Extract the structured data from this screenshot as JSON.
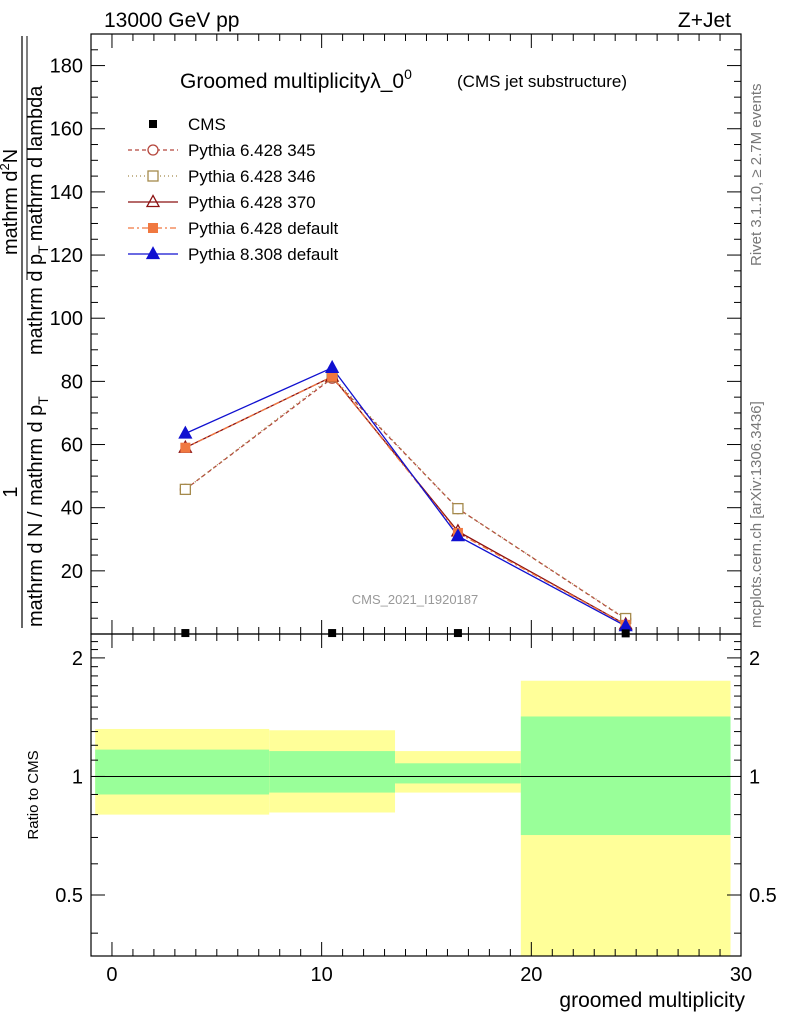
{
  "chart_data": {
    "type": "line",
    "header_left": "13000 GeV pp",
    "header_right": "Z+Jet",
    "title_main": "Groomed multiplicityλ_0",
    "title_sup": "0",
    "title_small": "(CMS jet substructure)",
    "ylabel_top_num": "mathrm d",
    "ylabel_top_sup": "2",
    "ylabel_top_N": "N",
    "ylabel_top_den": "mathrm d p",
    "ylabel_top_den_sub": "T",
    "ylabel_top_den_rest": "mathrm d lambda",
    "ylabel_outer_num": "1",
    "ylabel_outer_den": "mathrm d N / mathrm d p",
    "ylabel_outer_den_sub": "T",
    "xlabel": "groomed multiplicity",
    "ratio_ylabel": "Ratio to CMS",
    "right_label_top": "Rivet 3.1.10, ≥ 2.7M events",
    "right_label_bottom": "mcplots.cern.ch [arXiv:1306.3436]",
    "watermark": "CMS_2021_I1920187",
    "xlim": [
      -1,
      30
    ],
    "ylim": [
      0,
      190
    ],
    "ratio_ylim": [
      0.35,
      2.3
    ],
    "x_ticks": [
      0,
      10,
      20,
      30
    ],
    "y_ticks": [
      20,
      40,
      60,
      80,
      100,
      120,
      140,
      160,
      180
    ],
    "ratio_ticks": [
      {
        "value": 0.5,
        "label": "0.5"
      },
      {
        "value": 1,
        "label": "1"
      },
      {
        "value": 2,
        "label": "2"
      }
    ],
    "data": {
      "name": "CMS",
      "x": [
        3.5,
        10.5,
        16.5,
        24.5
      ],
      "y": [
        0.3,
        0.3,
        0.3,
        0.2
      ]
    },
    "series": [
      {
        "name": "Pythia 6.428 345",
        "color": "#b5463c",
        "dash": "4,3",
        "marker": "circle-open",
        "x": [
          3.5,
          10.5,
          16.5,
          24.5
        ],
        "y": [
          45.8,
          81.0,
          39.7,
          4.7
        ]
      },
      {
        "name": "Pythia 6.428 346",
        "color": "#a58a4c",
        "dash": "1,3",
        "marker": "square-open",
        "x": [
          3.5,
          10.5,
          16.5,
          24.5
        ],
        "y": [
          45.8,
          81.5,
          39.7,
          4.9
        ]
      },
      {
        "name": "Pythia 6.428 370",
        "color": "#8b1010",
        "dash": "",
        "marker": "triangle-open",
        "x": [
          3.5,
          10.5,
          16.5,
          24.5
        ],
        "y": [
          59.0,
          81.5,
          32.5,
          3.0
        ]
      },
      {
        "name": "Pythia 6.428 default",
        "color": "#f07840",
        "dash": "6,3,2,3",
        "marker": "square-filled",
        "x": [
          3.5,
          10.5,
          16.5,
          24.5
        ],
        "y": [
          59.0,
          81.5,
          32.0,
          2.9
        ]
      },
      {
        "name": "Pythia 8.308 default",
        "color": "#1010d0",
        "dash": "",
        "marker": "triangle-filled",
        "x": [
          3.5,
          10.5,
          16.5,
          24.5
        ],
        "y": [
          63.5,
          84.3,
          31.0,
          2.5
        ]
      }
    ],
    "ratio_bands": [
      {
        "x0": -0.8,
        "x1": 7.5,
        "yellow": [
          0.8,
          1.32
        ],
        "green": [
          0.9,
          1.17
        ]
      },
      {
        "x0": 7.5,
        "x1": 13.5,
        "yellow": [
          0.81,
          1.31
        ],
        "green": [
          0.91,
          1.16
        ]
      },
      {
        "x0": 13.5,
        "x1": 19.5,
        "yellow": [
          0.91,
          1.16
        ],
        "green": [
          0.96,
          1.08
        ]
      },
      {
        "x0": 19.5,
        "x1": 29.5,
        "yellow": [
          0.35,
          1.75
        ],
        "green": [
          0.71,
          1.42
        ]
      }
    ]
  },
  "colors": {
    "band_yellow": "#ffff99",
    "band_green": "#99ff99",
    "watermark": "#999999",
    "right_label": "#777777"
  }
}
